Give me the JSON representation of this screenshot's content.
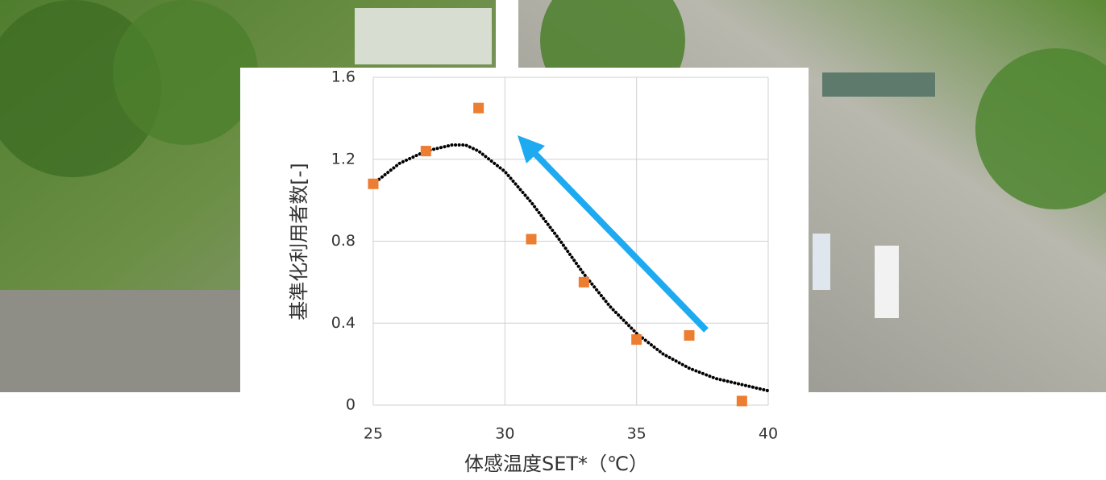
{
  "chart_data": {
    "type": "scatter",
    "xlabel": "体感温度SET*（℃）",
    "ylabel": "基準化利用者数[-]",
    "xlim": [
      25,
      40
    ],
    "xticks": [
      25,
      30,
      35,
      40
    ],
    "ylim": [
      0,
      1.6
    ],
    "yticks": [
      0,
      0.4,
      0.8,
      1.2,
      1.6
    ],
    "grid": true,
    "series": [
      {
        "color": "#ed7d31",
        "marker": "square",
        "x": [
          25,
          27,
          29,
          31,
          33,
          35,
          37,
          39
        ],
        "values": [
          1.08,
          1.24,
          1.45,
          0.81,
          0.6,
          0.32,
          0.34,
          0.02
        ]
      },
      {
        "color": "#000000",
        "marker": "dotted-line",
        "x": [
          25,
          26,
          27,
          28,
          28.5,
          29,
          30,
          31,
          32,
          33,
          34,
          35,
          36,
          37,
          38,
          39,
          40
        ],
        "values": [
          1.08,
          1.18,
          1.24,
          1.27,
          1.27,
          1.24,
          1.14,
          0.99,
          0.82,
          0.64,
          0.48,
          0.35,
          0.25,
          0.18,
          0.13,
          0.1,
          0.07
        ]
      }
    ]
  }
}
